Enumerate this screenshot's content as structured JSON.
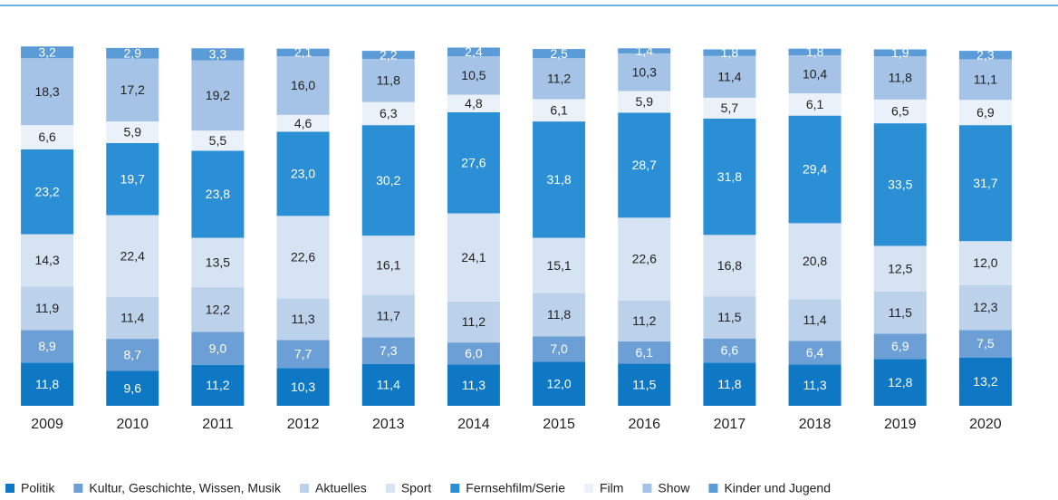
{
  "chart_data": {
    "type": "stacked_bar",
    "categories": [
      "2009",
      "2010",
      "2011",
      "2012",
      "2013",
      "2014",
      "2015",
      "2016",
      "2017",
      "2018",
      "2019",
      "2020"
    ],
    "ylim": [
      0,
      100
    ],
    "series": [
      {
        "name": "Politik",
        "color": "#0f78c5",
        "values": [
          11.8,
          9.6,
          11.2,
          10.3,
          11.4,
          11.3,
          12.0,
          11.5,
          11.8,
          11.3,
          12.8,
          13.2
        ],
        "value_labels": [
          "11,8",
          "9,6",
          "11,2",
          "10,3",
          "11,4",
          "11,3",
          "12,0",
          "11,5",
          "11,8",
          "11,3",
          "12,8",
          "13,2"
        ]
      },
      {
        "name": "Kultur, Geschichte, Wissen, Musik",
        "color": "#6c9fd5",
        "values": [
          8.9,
          8.7,
          9.0,
          7.7,
          7.3,
          6.0,
          7.0,
          6.1,
          6.6,
          6.4,
          6.9,
          7.5
        ],
        "value_labels": [
          "8,9",
          "8,7",
          "9,0",
          "7,7",
          "7,3",
          "6,0",
          "7,0",
          "6,1",
          "6,6",
          "6,4",
          "6,9",
          "7,5"
        ]
      },
      {
        "name": "Aktuelles",
        "color": "#bcd1ea",
        "values": [
          11.9,
          11.4,
          12.2,
          11.3,
          11.7,
          11.2,
          11.8,
          11.2,
          11.5,
          11.4,
          11.5,
          12.3
        ],
        "value_labels": [
          "11,9",
          "11,4",
          "12,2",
          "11,3",
          "11,7",
          "11,2",
          "11,8",
          "11,2",
          "11,5",
          "11,4",
          "11,5",
          "12,3"
        ]
      },
      {
        "name": "Sport",
        "color": "#d6e3f2",
        "values": [
          14.3,
          22.4,
          13.5,
          22.6,
          16.1,
          24.1,
          15.1,
          22.6,
          16.8,
          20.8,
          12.5,
          12.0
        ],
        "value_labels": [
          "14,3",
          "22,4",
          "13,5",
          "22,6",
          "16,1",
          "24,1",
          "15,1",
          "22,6",
          "16,8",
          "20,8",
          "12,5",
          "12,0"
        ]
      },
      {
        "name": "Fernsehfilm/Serie",
        "color": "#2a8fd4",
        "values": [
          23.2,
          19.7,
          23.8,
          23.0,
          30.2,
          27.6,
          31.8,
          28.7,
          31.8,
          29.4,
          33.5,
          31.7
        ],
        "value_labels": [
          "23,2",
          "19,7",
          "23,8",
          "23,0",
          "30,2",
          "27,6",
          "31,8",
          "28,7",
          "31,8",
          "29,4",
          "33,5",
          "31,7"
        ]
      },
      {
        "name": "Film",
        "color": "#eaf1f9",
        "values": [
          6.6,
          5.9,
          5.5,
          4.6,
          6.3,
          4.8,
          6.1,
          5.9,
          5.7,
          6.1,
          6.5,
          6.9
        ],
        "value_labels": [
          "6,6",
          "5,9",
          "5,5",
          "4,6",
          "6,3",
          "4,8",
          "6,1",
          "5,9",
          "5,7",
          "6,1",
          "6,5",
          "6,9"
        ]
      },
      {
        "name": "Show",
        "color": "#a5c3e6",
        "values": [
          18.3,
          17.2,
          19.2,
          16.0,
          11.8,
          10.5,
          11.2,
          10.3,
          11.4,
          10.4,
          11.8,
          11.1
        ],
        "value_labels": [
          "18,3",
          "17,2",
          "19,2",
          "16,0",
          "11,8",
          "10,5",
          "11,2",
          "10,3",
          "11,4",
          "10,4",
          "11,8",
          "11,1"
        ]
      },
      {
        "name": "Kinder und Jugend",
        "color": "#5a9bd8",
        "values": [
          3.2,
          2.9,
          3.3,
          2.1,
          2.2,
          2.4,
          2.5,
          1.4,
          1.8,
          1.8,
          1.9,
          2.3
        ],
        "value_labels": [
          "3,2",
          "2,9",
          "3,3",
          "2,1",
          "2,2",
          "2,4",
          "2,5",
          "1,4",
          "1,8",
          "1,8",
          "1,9",
          "2,3"
        ]
      }
    ]
  }
}
